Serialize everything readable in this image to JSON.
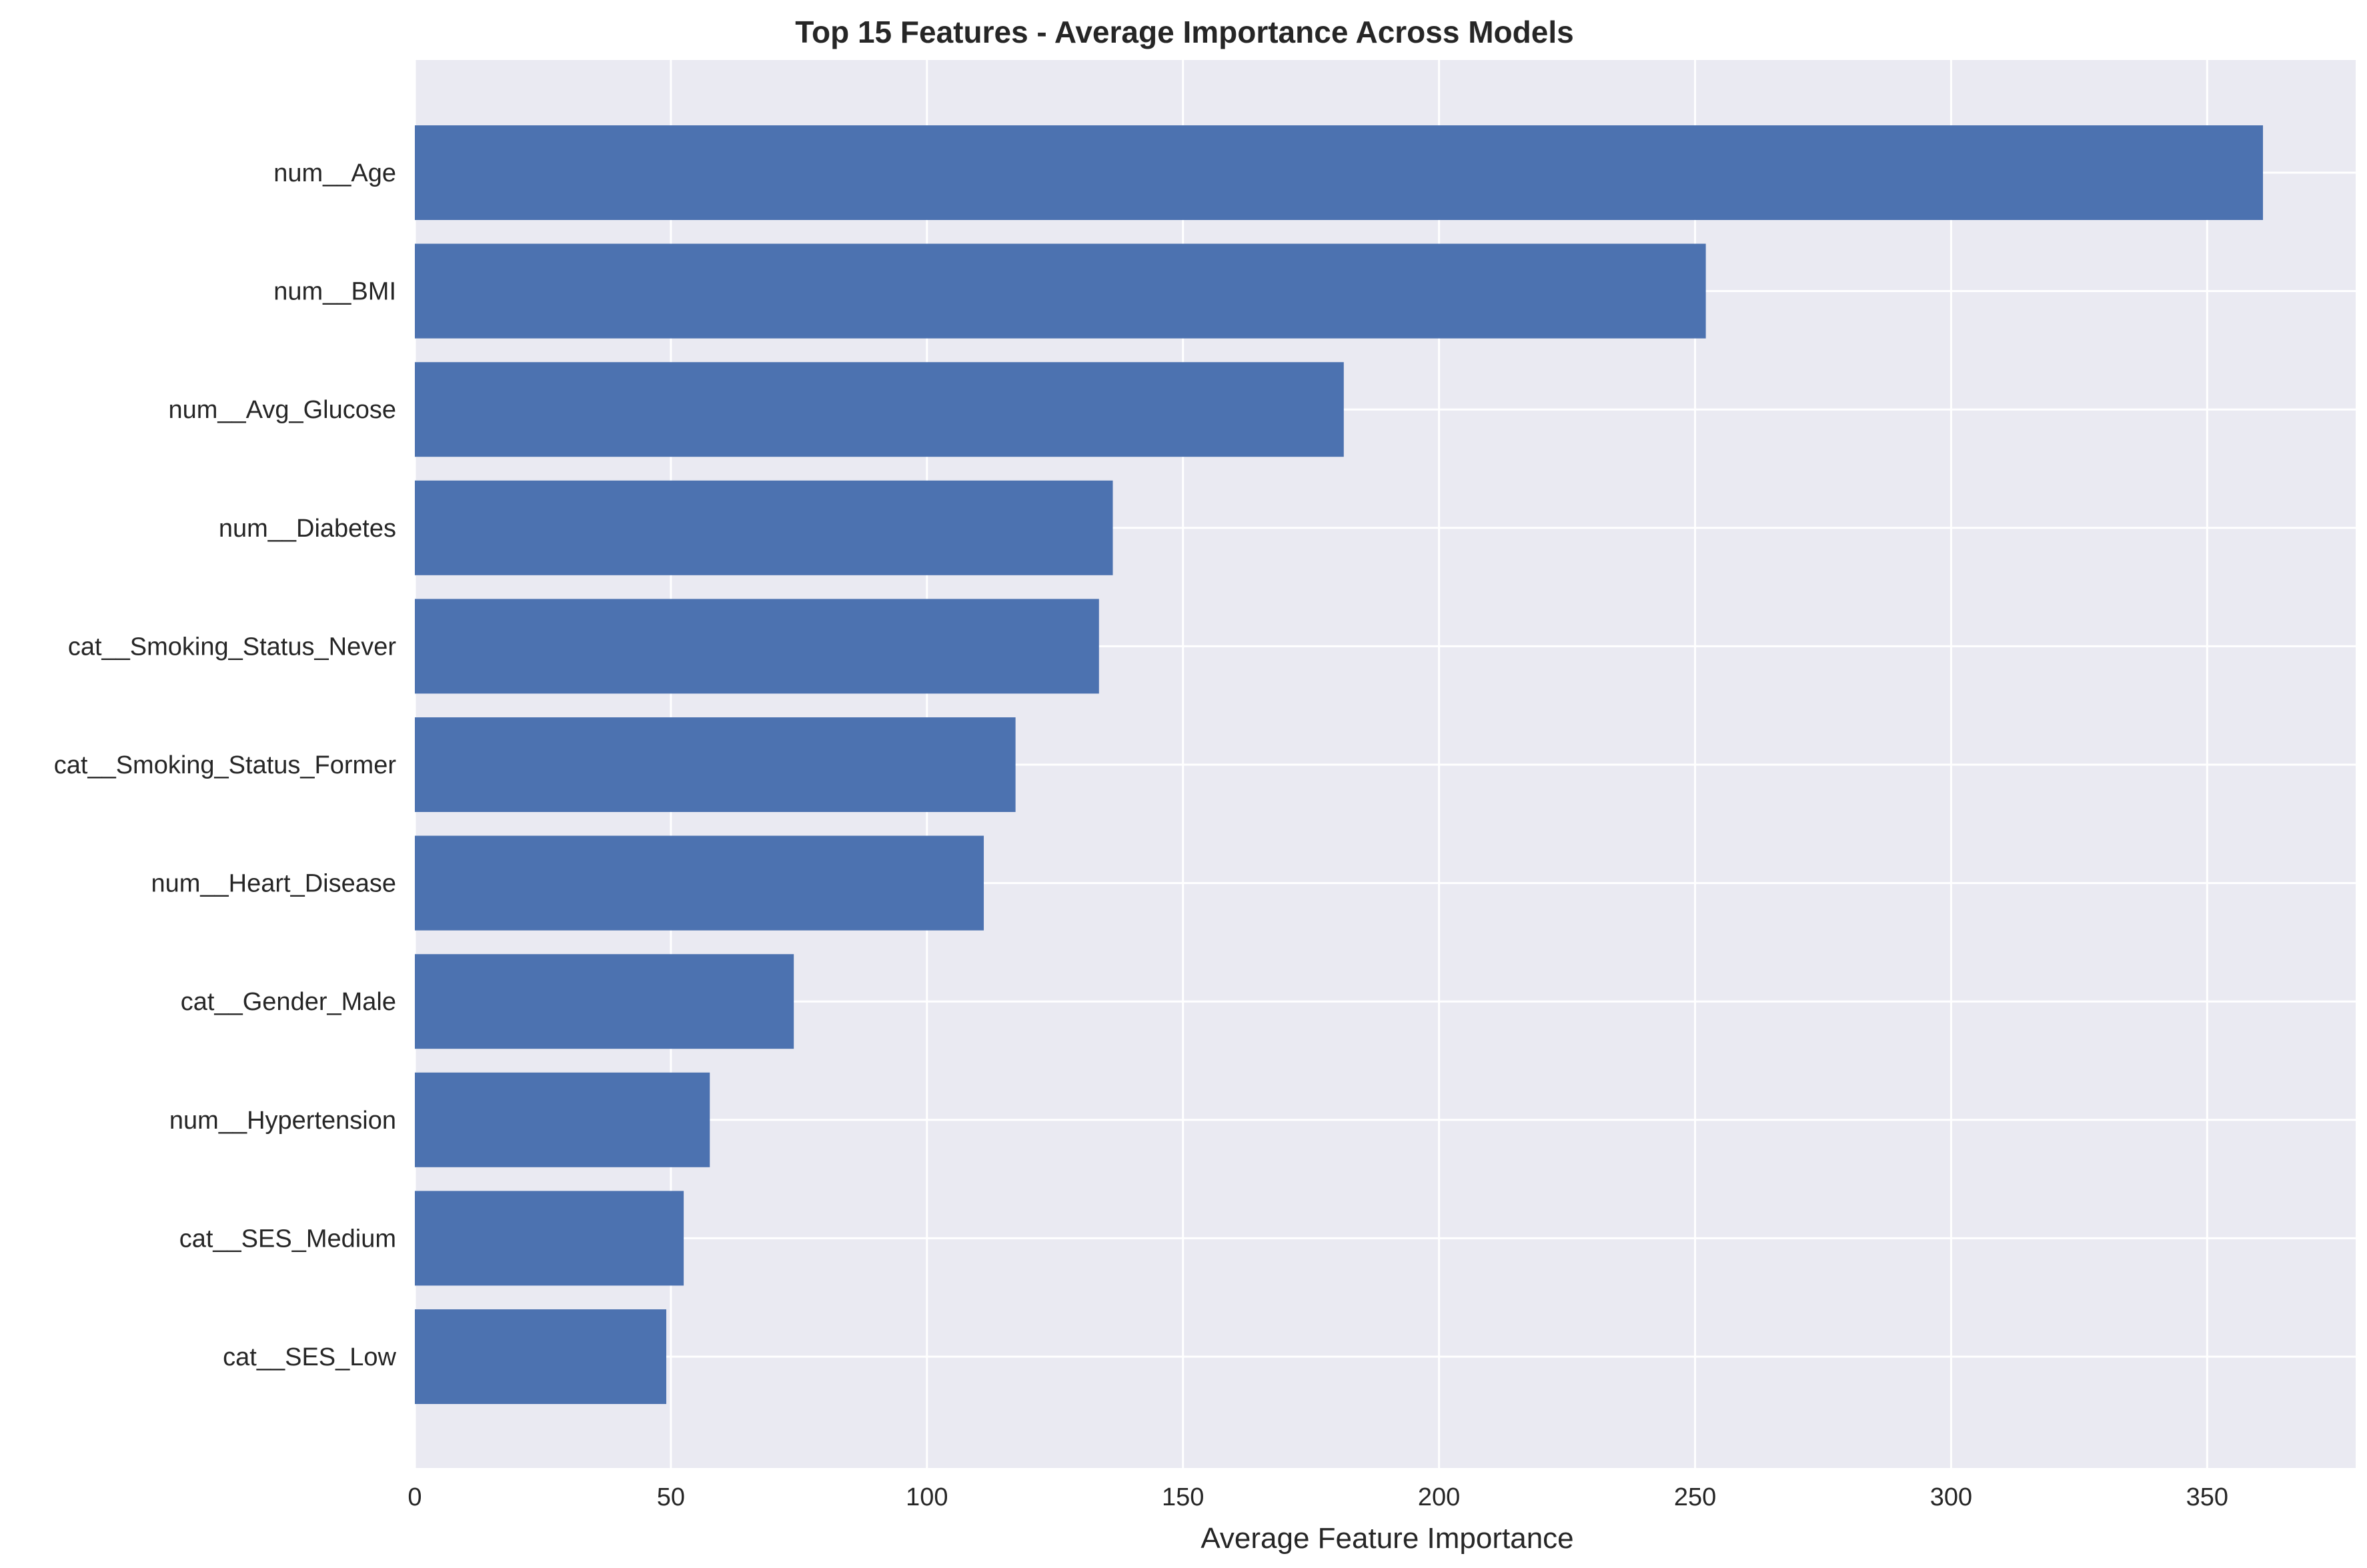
{
  "chart_data": {
    "type": "bar",
    "orientation": "horizontal",
    "title": "Top 15 Features - Average Importance Across Models",
    "xlabel": "Average Feature Importance",
    "ylabel": "",
    "categories": [
      "num__Age",
      "num__BMI",
      "num__Avg_Glucose",
      "num__Diabetes",
      "cat__Smoking_Status_Never",
      "cat__Smoking_Status_Former",
      "num__Heart_Disease",
      "cat__Gender_Male",
      "num__Hypertension",
      "cat__SES_Medium",
      "cat__SES_Low"
    ],
    "values": [
      360.9,
      252.1,
      181.4,
      136.3,
      133.6,
      117.3,
      111.1,
      74.0,
      57.6,
      52.5,
      49.1
    ],
    "xlim": [
      0,
      379
    ],
    "xticks": [
      0,
      50,
      100,
      150,
      200,
      250,
      300,
      350
    ],
    "grid": true,
    "legend": "none",
    "colors": {
      "bar": "#4c72b0",
      "plot_background": "#eaeaf2",
      "grid": "#ffffff",
      "text": "#262626"
    }
  }
}
